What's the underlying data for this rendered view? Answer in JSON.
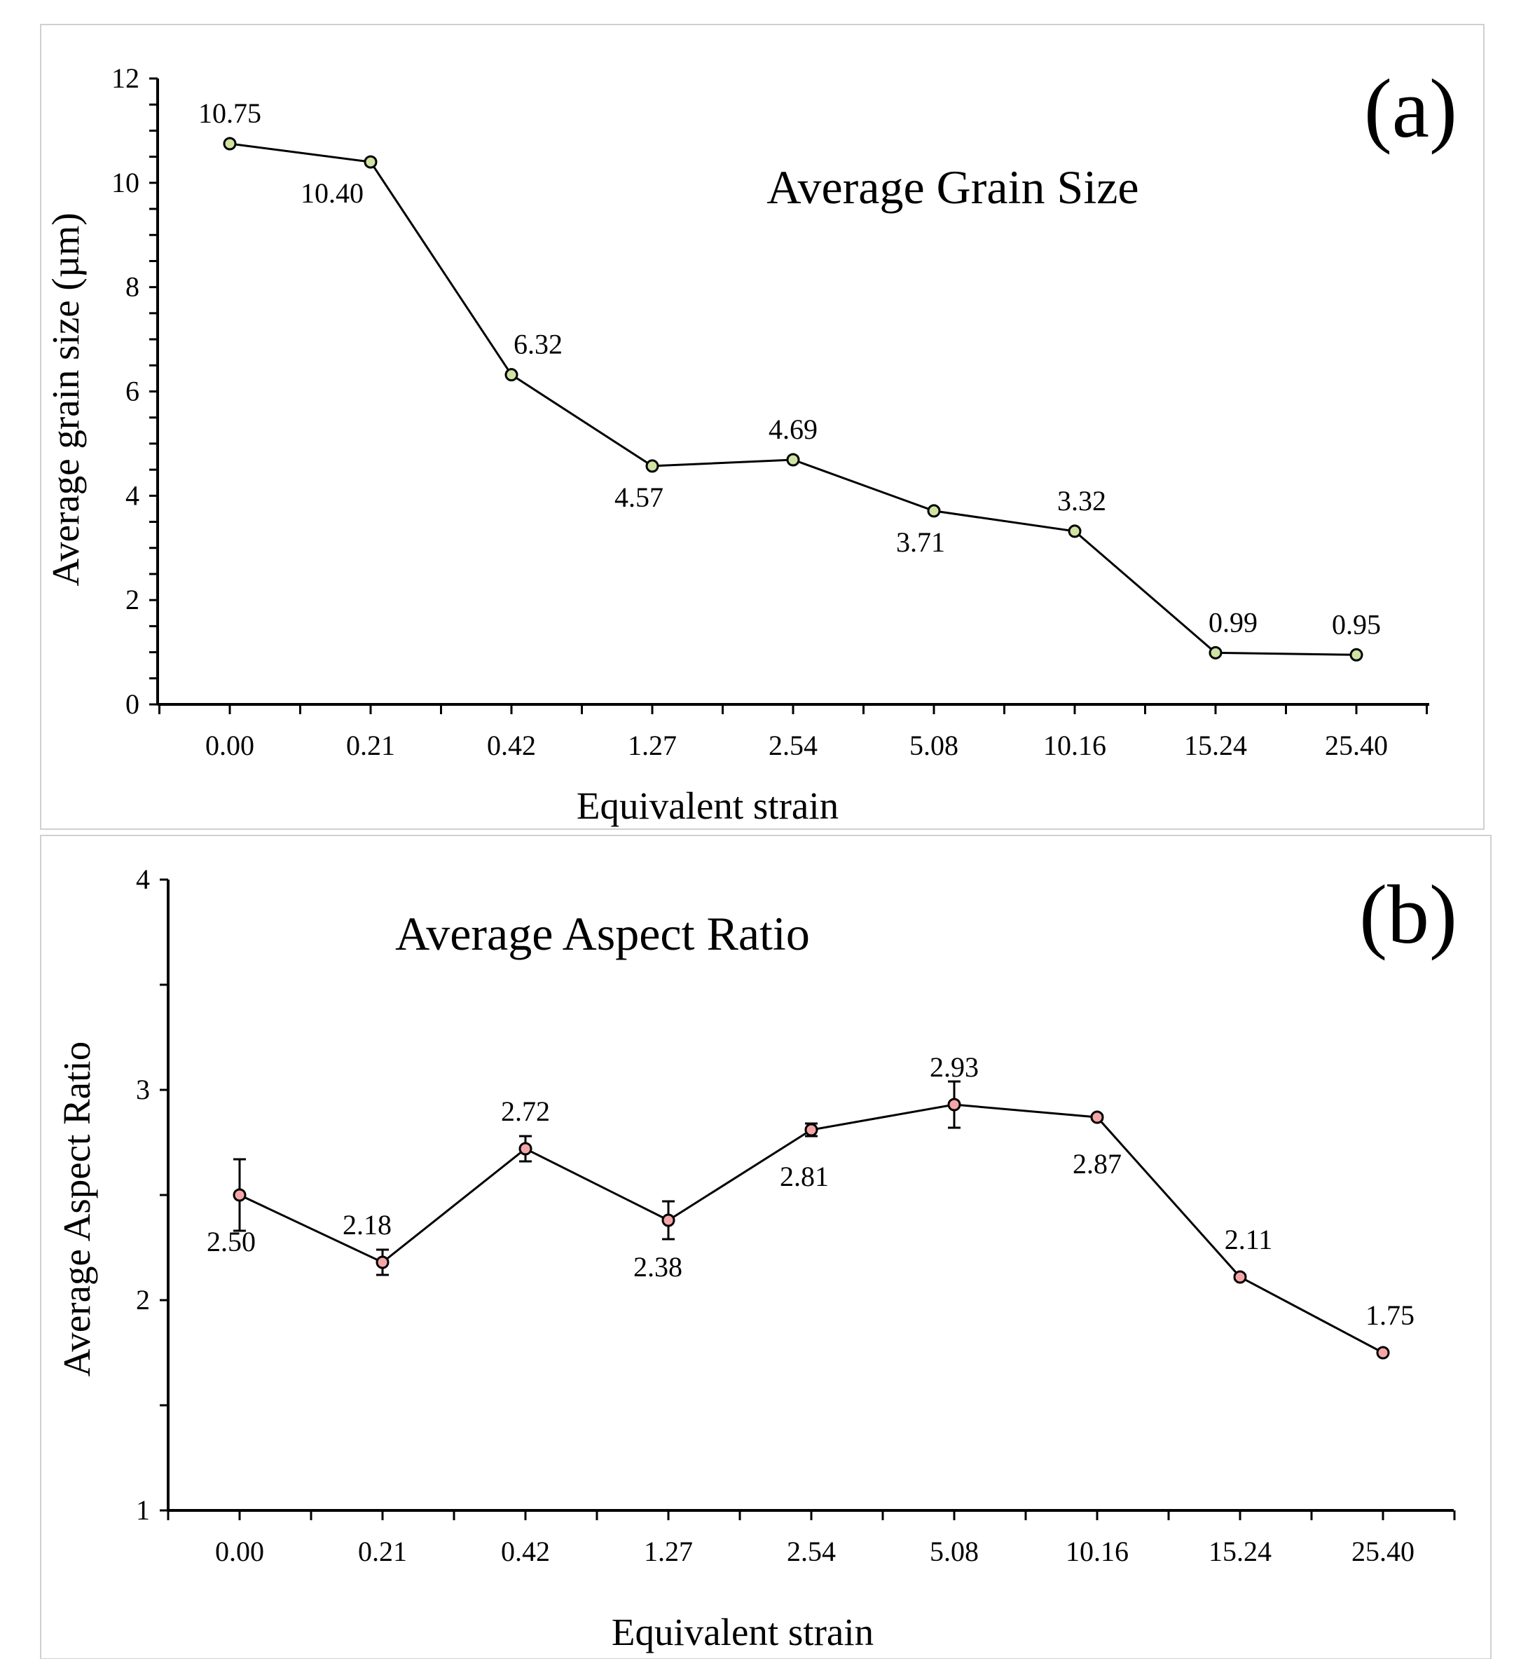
{
  "chart_data": [
    {
      "panel": "(a)",
      "type": "line",
      "title": "Average Grain Size",
      "xlabel": "Equivalent strain",
      "ylabel": "Average grain size (µm)",
      "categories": [
        "0.00",
        "0.21",
        "0.42",
        "1.27",
        "2.54",
        "5.08",
        "10.16",
        "15.24",
        "25.40"
      ],
      "values": [
        10.75,
        10.4,
        6.32,
        4.57,
        4.69,
        3.71,
        3.32,
        0.99,
        0.95
      ],
      "value_labels": [
        "10.75",
        "10.40",
        "6.32",
        "4.57",
        "4.69",
        "3.71",
        "3.32",
        "0.99",
        "0.95"
      ],
      "label_positions": [
        "above",
        "below",
        "above",
        "below",
        "above",
        "below",
        "above",
        "above",
        "above"
      ],
      "ylim": [
        0,
        12
      ],
      "yticks": [
        0,
        2,
        4,
        6,
        8,
        10,
        12
      ],
      "ytick_labels": [
        "0",
        "2",
        "4",
        "6",
        "8",
        "10",
        "12"
      ],
      "marker_color": "#cfe3a3"
    },
    {
      "panel": "(b)",
      "type": "line",
      "title": "Average Aspect Ratio",
      "xlabel": "Equivalent strain",
      "ylabel": "Average Aspect Ratio",
      "categories": [
        "0.00",
        "0.21",
        "0.42",
        "1.27",
        "2.54",
        "5.08",
        "10.16",
        "15.24",
        "25.40"
      ],
      "values": [
        2.5,
        2.18,
        2.72,
        2.38,
        2.81,
        2.93,
        2.87,
        2.11,
        1.75
      ],
      "value_labels": [
        "2.50",
        "2.18",
        "2.72",
        "2.38",
        "2.81",
        "2.93",
        "2.87",
        "2.11",
        "1.75"
      ],
      "errors": [
        0.17,
        0.06,
        0.06,
        0.09,
        0.03,
        0.11,
        0.01,
        0.01,
        0.0
      ],
      "label_positions": [
        "below",
        "above",
        "above",
        "below",
        "below",
        "above",
        "below",
        "above",
        "above"
      ],
      "ylim": [
        1,
        4
      ],
      "yticks": [
        1,
        2,
        3,
        4
      ],
      "ytick_labels": [
        "1",
        "2",
        "3",
        "4"
      ],
      "marker_color": "#f4a6a6"
    }
  ]
}
